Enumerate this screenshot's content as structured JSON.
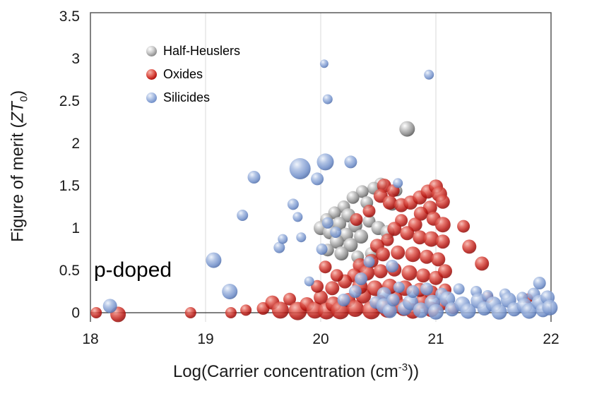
{
  "chart_data": {
    "type": "scatter",
    "subtype": "bubble",
    "title": "",
    "annotation": "p-doped",
    "xlabel": "Log(Carrier concentration (cm-3))",
    "xlabel_pre": "Log(Carrier concentration (cm",
    "xlabel_sup": "-3",
    "xlabel_post": "))",
    "ylabel": "Figure of merit (ZT0)",
    "ylabel_pre": "Figure of merit (",
    "ylabel_italic": "ZT",
    "ylabel_sub": "0",
    "ylabel_post": ")",
    "xlim": [
      18,
      22
    ],
    "ylim": [
      -0.11,
      3.54
    ],
    "grid": "vertical-gridlines-at-19-20-21",
    "legend_position": "top-left-inside",
    "x_ticks": [
      {
        "v": 18,
        "label": "18"
      },
      {
        "v": 19,
        "label": "19"
      },
      {
        "v": 20,
        "label": "20"
      },
      {
        "v": 21,
        "label": "21"
      },
      {
        "v": 22,
        "label": "22"
      }
    ],
    "y_ticks": [
      {
        "v": 0,
        "label": "0"
      },
      {
        "v": 0.5,
        "label": "0.5"
      },
      {
        "v": 1,
        "label": "1"
      },
      {
        "v": 1.5,
        "label": "1.5"
      },
      {
        "v": 2,
        "label": "2"
      },
      {
        "v": 2.5,
        "label": "2.5"
      },
      {
        "v": 3,
        "label": "3"
      },
      {
        "v": 3.5,
        "label": "3.5"
      }
    ],
    "series": [
      {
        "name": "Half-Heuslers",
        "color": "#8f8f8f",
        "gradient": [
          "#ffffff",
          "#c9c9c9",
          "#8f8f8f",
          "#5c5c5c"
        ],
        "opacity": 0.95,
        "points": [
          [
            20.75,
            2.17,
            11
          ],
          [
            20.52,
            1.52,
            9
          ],
          [
            20.46,
            1.47,
            9
          ],
          [
            20.36,
            1.43,
            9
          ],
          [
            20.28,
            1.36,
            9
          ],
          [
            20.4,
            1.3,
            9
          ],
          [
            20.2,
            1.25,
            9
          ],
          [
            20.12,
            1.18,
            9
          ],
          [
            20.24,
            1.15,
            10
          ],
          [
            20.05,
            1.1,
            9
          ],
          [
            20.16,
            1.05,
            10
          ],
          [
            20.0,
            1.0,
            10
          ],
          [
            20.08,
            0.95,
            10
          ],
          [
            20.3,
            1.03,
            10
          ],
          [
            20.42,
            1.08,
            9
          ],
          [
            20.5,
            1.0,
            10
          ],
          [
            20.22,
            0.92,
            10
          ],
          [
            20.35,
            0.9,
            10
          ],
          [
            20.14,
            0.84,
            10
          ],
          [
            20.26,
            0.8,
            10
          ],
          [
            20.06,
            0.74,
            9
          ],
          [
            20.18,
            0.7,
            10
          ],
          [
            20.32,
            0.66,
            9
          ],
          [
            20.44,
            0.7,
            9
          ],
          [
            20.58,
            0.95,
            10
          ],
          [
            20.62,
            1.28,
            9
          ],
          [
            20.66,
            1.44,
            8
          ]
        ]
      },
      {
        "name": "Oxides",
        "color": "#b51510",
        "gradient": [
          "#f5b5ad",
          "#e05a50",
          "#b51510",
          "#860b08"
        ],
        "opacity": 0.85,
        "points": [
          [
            18.05,
            0.0,
            8
          ],
          [
            18.24,
            -0.02,
            11
          ],
          [
            18.87,
            0.0,
            8
          ],
          [
            19.22,
            0.0,
            8
          ],
          [
            19.35,
            0.03,
            8
          ],
          [
            19.5,
            0.05,
            9
          ],
          [
            19.58,
            0.12,
            10
          ],
          [
            19.65,
            0.03,
            12
          ],
          [
            19.73,
            0.16,
            9
          ],
          [
            19.8,
            0.02,
            13
          ],
          [
            19.88,
            0.1,
            10
          ],
          [
            19.95,
            0.03,
            12
          ],
          [
            20.0,
            0.18,
            10
          ],
          [
            20.05,
            0.02,
            12
          ],
          [
            20.11,
            0.1,
            11
          ],
          [
            20.17,
            0.03,
            13
          ],
          [
            20.24,
            0.15,
            10
          ],
          [
            20.3,
            0.05,
            12
          ],
          [
            20.37,
            0.2,
            11
          ],
          [
            20.44,
            0.03,
            13
          ],
          [
            20.51,
            0.12,
            11
          ],
          [
            20.58,
            0.04,
            12
          ],
          [
            20.65,
            0.17,
            10
          ],
          [
            20.72,
            0.06,
            12
          ],
          [
            20.8,
            0.02,
            11
          ],
          [
            20.88,
            0.13,
            10
          ],
          [
            20.96,
            0.04,
            11
          ],
          [
            21.05,
            0.1,
            9
          ],
          [
            21.15,
            0.05,
            8
          ],
          [
            21.45,
            0.18,
            8
          ],
          [
            21.8,
            0.17,
            7
          ],
          [
            20.55,
            1.5,
            10
          ],
          [
            20.63,
            1.44,
            9
          ],
          [
            20.52,
            1.38,
            10
          ],
          [
            20.6,
            1.3,
            10
          ],
          [
            20.7,
            1.27,
            10
          ],
          [
            20.78,
            1.3,
            10
          ],
          [
            20.86,
            1.36,
            10
          ],
          [
            20.93,
            1.43,
            10
          ],
          [
            21.0,
            1.49,
            10
          ],
          [
            21.03,
            1.4,
            11
          ],
          [
            21.06,
            1.31,
            10
          ],
          [
            20.95,
            1.24,
            10
          ],
          [
            20.87,
            1.17,
            10
          ],
          [
            20.98,
            1.11,
            10
          ],
          [
            21.06,
            1.04,
            11
          ],
          [
            20.82,
            1.04,
            10
          ],
          [
            20.7,
            1.09,
            9
          ],
          [
            20.64,
            0.99,
            10
          ],
          [
            20.75,
            0.94,
            10
          ],
          [
            20.86,
            0.89,
            10
          ],
          [
            20.96,
            0.87,
            11
          ],
          [
            21.06,
            0.84,
            10
          ],
          [
            20.58,
            0.86,
            9
          ],
          [
            20.49,
            0.79,
            10
          ],
          [
            20.54,
            0.69,
            10
          ],
          [
            20.67,
            0.71,
            10
          ],
          [
            20.8,
            0.69,
            11
          ],
          [
            20.92,
            0.66,
            10
          ],
          [
            21.02,
            0.63,
            10
          ],
          [
            20.44,
            0.61,
            10
          ],
          [
            20.34,
            0.56,
            10
          ],
          [
            20.4,
            0.47,
            11
          ],
          [
            20.52,
            0.49,
            10
          ],
          [
            20.64,
            0.51,
            10
          ],
          [
            20.77,
            0.47,
            11
          ],
          [
            20.89,
            0.44,
            10
          ],
          [
            21.0,
            0.41,
            10
          ],
          [
            21.08,
            0.49,
            10
          ],
          [
            20.29,
            0.44,
            10
          ],
          [
            20.21,
            0.37,
            10
          ],
          [
            20.34,
            0.31,
            11
          ],
          [
            20.47,
            0.29,
            11
          ],
          [
            20.6,
            0.31,
            11
          ],
          [
            20.73,
            0.29,
            11
          ],
          [
            20.86,
            0.27,
            10
          ],
          [
            20.96,
            0.24,
            10
          ],
          [
            21.08,
            0.27,
            9
          ],
          [
            20.1,
            0.29,
            10
          ],
          [
            19.97,
            0.31,
            9
          ],
          [
            20.14,
            0.44,
            9
          ],
          [
            20.04,
            0.54,
            9
          ],
          [
            20.42,
            1.2,
            9
          ],
          [
            20.31,
            1.1,
            9
          ],
          [
            21.24,
            1.02,
            9
          ],
          [
            21.29,
            0.78,
            10
          ],
          [
            21.4,
            0.58,
            10
          ]
        ]
      },
      {
        "name": "Silicides",
        "color": "#7492cb",
        "gradient": [
          "#eef3fb",
          "#a9bde2",
          "#7492cb",
          "#4e6ba6"
        ],
        "opacity": 0.88,
        "points": [
          [
            18.17,
            0.08,
            10
          ],
          [
            19.07,
            0.62,
            11
          ],
          [
            19.21,
            0.25,
            11
          ],
          [
            19.32,
            1.15,
            8
          ],
          [
            19.42,
            1.6,
            9
          ],
          [
            19.64,
            0.77,
            8
          ],
          [
            19.67,
            0.87,
            7
          ],
          [
            19.76,
            1.28,
            8
          ],
          [
            19.8,
            1.13,
            7
          ],
          [
            19.82,
            1.7,
            15
          ],
          [
            19.83,
            0.89,
            7
          ],
          [
            19.9,
            0.37,
            7
          ],
          [
            19.97,
            1.58,
            9
          ],
          [
            20.04,
            1.78,
            12
          ],
          [
            20.26,
            1.78,
            9
          ],
          [
            20.03,
            2.94,
            6
          ],
          [
            20.06,
            2.52,
            7
          ],
          [
            20.94,
            2.81,
            7
          ],
          [
            20.67,
            1.53,
            7
          ],
          [
            20.06,
            1.06,
            8
          ],
          [
            20.13,
            0.95,
            8
          ],
          [
            20.01,
            0.75,
            8
          ],
          [
            20.35,
            0.4,
            9
          ],
          [
            20.42,
            0.6,
            8
          ],
          [
            20.62,
            0.55,
            9
          ],
          [
            20.3,
            0.25,
            9
          ],
          [
            20.55,
            0.22,
            10
          ],
          [
            20.2,
            0.15,
            9
          ],
          [
            20.48,
            0.12,
            9
          ],
          [
            20.55,
            0.08,
            11
          ],
          [
            20.6,
            0.02,
            10
          ],
          [
            20.63,
            0.15,
            9
          ],
          [
            20.68,
            0.3,
            8
          ],
          [
            20.73,
            0.05,
            10
          ],
          [
            20.78,
            0.12,
            11
          ],
          [
            20.8,
            0.25,
            9
          ],
          [
            20.87,
            0.03,
            11
          ],
          [
            20.92,
            0.28,
            9
          ],
          [
            20.97,
            0.12,
            11
          ],
          [
            21.0,
            0.01,
            11
          ],
          [
            21.05,
            0.22,
            9
          ],
          [
            21.1,
            0.16,
            11
          ],
          [
            21.14,
            0.04,
            10
          ],
          [
            21.2,
            0.28,
            8
          ],
          [
            21.23,
            0.1,
            11
          ],
          [
            21.28,
            0.02,
            11
          ],
          [
            21.35,
            0.25,
            8
          ],
          [
            21.37,
            0.14,
            11
          ],
          [
            21.42,
            0.05,
            10
          ],
          [
            21.45,
            0.2,
            8
          ],
          [
            21.5,
            0.1,
            11
          ],
          [
            21.55,
            0.01,
            11
          ],
          [
            21.6,
            0.22,
            8
          ],
          [
            21.63,
            0.15,
            11
          ],
          [
            21.68,
            0.04,
            10
          ],
          [
            21.75,
            0.18,
            8
          ],
          [
            21.77,
            0.08,
            11
          ],
          [
            21.81,
            0.02,
            11
          ],
          [
            21.85,
            0.22,
            9
          ],
          [
            21.9,
            0.12,
            11
          ],
          [
            21.9,
            0.35,
            9
          ],
          [
            21.93,
            0.03,
            10
          ],
          [
            21.97,
            0.18,
            10
          ],
          [
            21.99,
            0.06,
            11
          ]
        ]
      }
    ]
  },
  "colors": {
    "frame": "#595959",
    "gridline": "#d9d9d9",
    "zero_line": "#333333",
    "text": "#1a1a1a",
    "background": "#ffffff"
  }
}
